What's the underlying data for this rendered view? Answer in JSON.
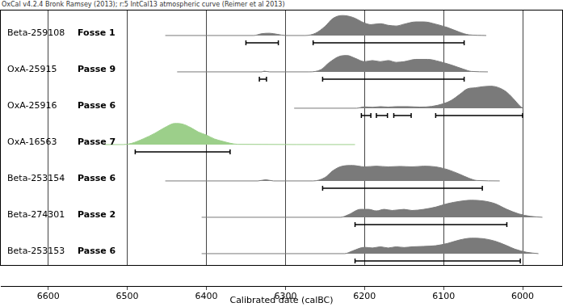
{
  "chart_data": {
    "type": "area",
    "title": "OxCal v4.2.4 Bronk Ramsey (2013); r:5 IntCal13 atmospheric curve (Reimer et al 2013)",
    "x_label": "Calibrated date (calBC)",
    "xlim": [
      6660,
      5950
    ],
    "xticks": [
      6600,
      6500,
      6400,
      6300,
      6200,
      6100,
      6000
    ],
    "ylim": [
      -0.5,
      1.1
    ],
    "grid": true,
    "tick_labels": "x",
    "series": [
      {
        "name": "Beta-259108",
        "context": "Fosse 1",
        "color": "#7a7a7a",
        "x": [
          6452,
          6340,
          6330,
          6320,
          6310,
          6300,
          6275,
          6262,
          6250,
          6240,
          6228,
          6215,
          6200,
          6192,
          6180,
          6170,
          6160,
          6150,
          6135,
          6125,
          6110,
          6095,
          6080,
          6068,
          6046
        ],
        "values": [
          0,
          0,
          0.08,
          0.1,
          0.05,
          0,
          0,
          0.1,
          0.4,
          0.75,
          0.88,
          0.8,
          0.55,
          0.48,
          0.52,
          0.45,
          0.42,
          0.5,
          0.6,
          0.6,
          0.5,
          0.35,
          0.15,
          0.03,
          0
        ],
        "ranges": [
          [
            6350,
            6309
          ],
          [
            6265,
            6074
          ]
        ]
      },
      {
        "name": "OxA-25915",
        "context": "Passe 9",
        "color": "#7a7a7a",
        "x": [
          6437,
          6330,
          6327,
          6320,
          6270,
          6255,
          6245,
          6230,
          6222,
          6212,
          6200,
          6190,
          6180,
          6170,
          6160,
          6150,
          6135,
          6120,
          6105,
          6090,
          6075,
          6065,
          6044
        ],
        "values": [
          0,
          0,
          0.03,
          0,
          0,
          0.1,
          0.4,
          0.7,
          0.72,
          0.6,
          0.45,
          0.5,
          0.45,
          0.5,
          0.42,
          0.45,
          0.55,
          0.55,
          0.45,
          0.3,
          0.12,
          0.02,
          0
        ],
        "ranges": [
          [
            6333,
            6324
          ],
          [
            6253,
            6074
          ]
        ]
      },
      {
        "name": "OxA-25916",
        "context": "Passe 6",
        "color": "#7a7a7a",
        "x": [
          6289,
          6210,
          6200,
          6190,
          6180,
          6170,
          6160,
          6145,
          6130,
          6115,
          6100,
          6090,
          6080,
          6070,
          6060,
          6050,
          6040,
          6030,
          6020,
          6010,
          6005,
          6000
        ],
        "values": [
          0,
          0,
          0.06,
          0.04,
          0.07,
          0.05,
          0.07,
          0.07,
          0.05,
          0.08,
          0.2,
          0.35,
          0.6,
          0.85,
          0.9,
          0.95,
          0.97,
          0.9,
          0.7,
          0.35,
          0.15,
          0
        ],
        "ranges": [
          [
            6204,
            6192
          ],
          [
            6185,
            6171
          ],
          [
            6163,
            6141
          ],
          [
            6110,
            6000
          ]
        ]
      },
      {
        "name": "OxA-16563",
        "context": "Passe 7",
        "color": "#9ccf8a",
        "x": [
          6530,
          6505,
          6495,
          6480,
          6465,
          6450,
          6440,
          6430,
          6420,
          6410,
          6400,
          6390,
          6380,
          6370,
          6360,
          6212
        ],
        "values": [
          0,
          0,
          0.05,
          0.25,
          0.5,
          0.8,
          0.93,
          0.9,
          0.75,
          0.55,
          0.42,
          0.25,
          0.15,
          0.06,
          0.01,
          0
        ],
        "ranges": [
          [
            6490,
            6370
          ]
        ]
      },
      {
        "name": "Beta-253154",
        "context": "Passe 6",
        "color": "#7a7a7a",
        "x": [
          6452,
          6335,
          6325,
          6315,
          6265,
          6250,
          6240,
          6228,
          6215,
          6200,
          6185,
          6170,
          6155,
          6140,
          6125,
          6110,
          6095,
          6080,
          6068,
          6058,
          6029
        ],
        "values": [
          0,
          0,
          0.05,
          0,
          0,
          0.15,
          0.45,
          0.65,
          0.68,
          0.62,
          0.65,
          0.62,
          0.64,
          0.62,
          0.65,
          0.62,
          0.5,
          0.3,
          0.12,
          0.02,
          0
        ],
        "ranges": [
          [
            6253,
            6051
          ]
        ]
      },
      {
        "name": "Beta-274301",
        "context": "Passe 2",
        "color": "#7a7a7a",
        "x": [
          6406,
          6230,
          6220,
          6205,
          6195,
          6185,
          6175,
          6165,
          6150,
          6140,
          6125,
          6110,
          6095,
          6080,
          6065,
          6050,
          6035,
          6020,
          6005,
          5990,
          5975
        ],
        "values": [
          0,
          0,
          0.12,
          0.35,
          0.35,
          0.28,
          0.35,
          0.3,
          0.35,
          0.3,
          0.35,
          0.45,
          0.6,
          0.7,
          0.75,
          0.72,
          0.6,
          0.35,
          0.15,
          0.04,
          0
        ],
        "ranges": [
          [
            6212,
            6020
          ]
        ]
      },
      {
        "name": "Beta-253153",
        "context": "Passe 6",
        "color": "#7a7a7a",
        "x": [
          6406,
          6225,
          6215,
          6200,
          6190,
          6180,
          6170,
          6160,
          6150,
          6140,
          6125,
          6110,
          6095,
          6080,
          6065,
          6050,
          6035,
          6020,
          6010,
          5995,
          5980
        ],
        "values": [
          0,
          0,
          0.12,
          0.28,
          0.25,
          0.3,
          0.25,
          0.3,
          0.27,
          0.3,
          0.32,
          0.35,
          0.45,
          0.6,
          0.68,
          0.66,
          0.55,
          0.35,
          0.2,
          0.06,
          0
        ],
        "ranges": [
          [
            6212,
            6003
          ]
        ]
      }
    ]
  }
}
